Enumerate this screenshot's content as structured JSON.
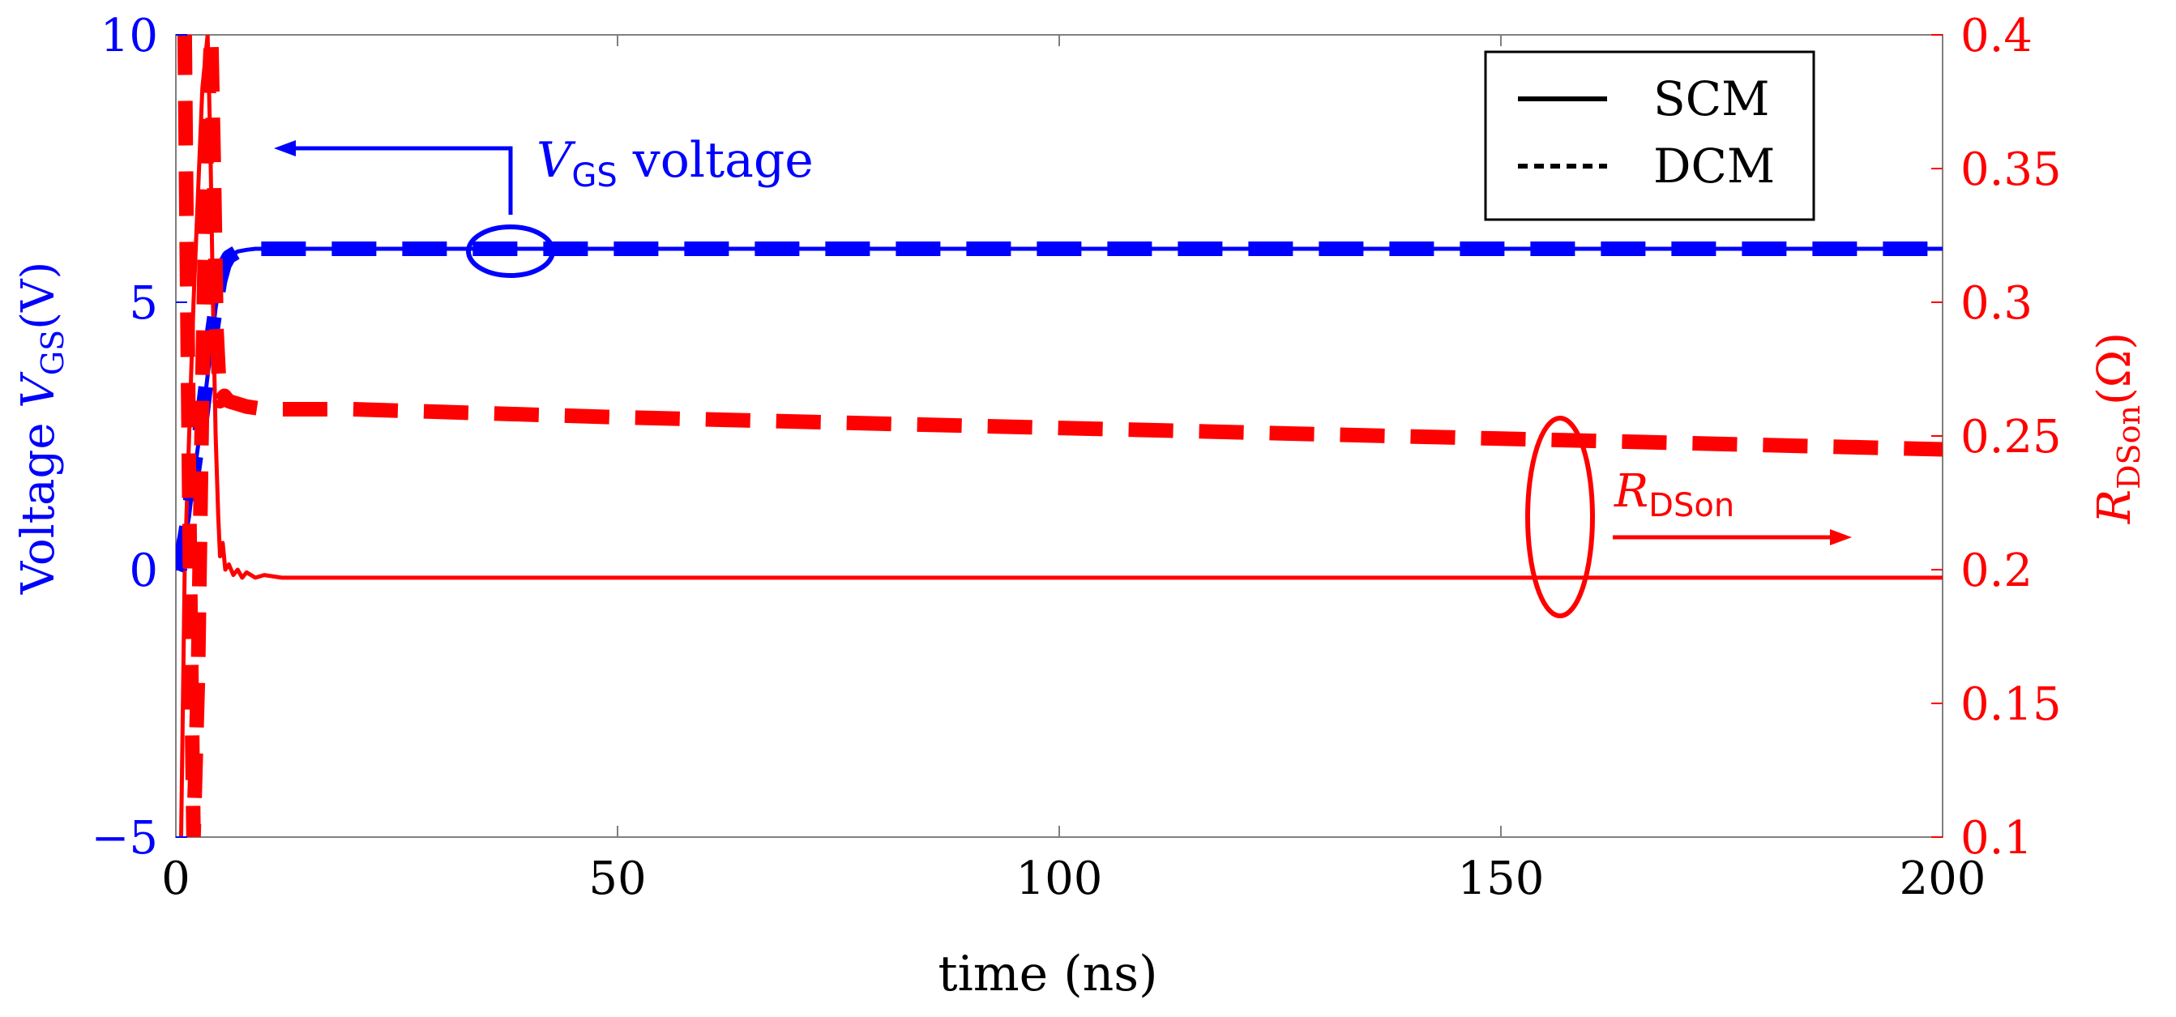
{
  "chart_data": {
    "type": "line",
    "title": "",
    "xlabel": "time (ns)",
    "ylabel_left": {
      "prefix": "Voltage ",
      "symbol": "V",
      "subscript": "GS",
      "suffix": "(V)"
    },
    "ylabel_right": {
      "symbol": "R",
      "subscript": "DSon",
      "suffix": "(Ω)"
    },
    "xlim": [
      0,
      200
    ],
    "ylim_left": [
      -5,
      10
    ],
    "ylim_right": [
      0.1,
      0.4
    ],
    "x_ticks": [
      0,
      50,
      100,
      150,
      200
    ],
    "x_tick_labels": [
      "0",
      "50",
      "100",
      "150",
      "200"
    ],
    "left_ticks": [
      -5,
      0,
      5,
      10
    ],
    "left_tick_labels": [
      "−5",
      "0",
      "5",
      "10"
    ],
    "right_ticks": [
      0.1,
      0.15,
      0.2,
      0.25,
      0.3,
      0.35,
      0.4
    ],
    "right_tick_labels": [
      "0.1",
      "0.15",
      "0.2",
      "0.25",
      "0.3",
      "0.35",
      "0.4"
    ],
    "legend": {
      "position": "top-right",
      "entries": [
        {
          "label": "SCM",
          "style": "solid"
        },
        {
          "label": "DCM",
          "style": "dashed"
        }
      ]
    },
    "annotations": {
      "vgs": {
        "symbol": "V",
        "subscript": "GS",
        "text": " voltage"
      },
      "rdson": {
        "symbol": "R",
        "subscript": "DSon"
      }
    },
    "series": [
      {
        "name": "VGS SCM",
        "axis": "left",
        "color": "#0000ff",
        "style": "solid",
        "x": [
          0,
          0.5,
          1,
          1.5,
          2,
          2.5,
          3,
          3.5,
          4,
          4.5,
          5,
          5.5,
          6,
          7,
          8,
          9,
          10,
          12,
          14,
          16,
          20,
          30,
          50,
          100,
          150,
          200
        ],
        "y": [
          0,
          0.2,
          0.5,
          1.0,
          1.7,
          2.3,
          2.8,
          3.5,
          4.2,
          4.9,
          5.4,
          5.7,
          5.85,
          5.95,
          5.98,
          6.0,
          6.0,
          6.0,
          6.0,
          6.0,
          6.0,
          6.0,
          6.0,
          6.0,
          6.0,
          6.0
        ]
      },
      {
        "name": "VGS DCM",
        "axis": "left",
        "color": "#0000ff",
        "style": "dashed",
        "x": [
          0,
          0.5,
          1,
          1.5,
          2,
          2.5,
          3,
          3.5,
          4,
          4.5,
          5,
          5.5,
          6,
          7,
          8,
          9,
          10,
          12,
          14,
          16,
          20,
          30,
          50,
          100,
          150,
          200
        ],
        "y": [
          0,
          0.2,
          0.6,
          1.1,
          1.8,
          2.4,
          2.9,
          3.6,
          4.3,
          4.9,
          5.4,
          5.7,
          5.85,
          5.95,
          5.98,
          6.0,
          6.0,
          6.0,
          6.0,
          6.0,
          6.0,
          6.0,
          6.0,
          6.0,
          6.0,
          6.0
        ]
      },
      {
        "name": "RDSon SCM",
        "axis": "right",
        "color": "#ff0000",
        "style": "solid",
        "x": [
          0.5,
          0.6,
          1,
          2,
          3,
          3.6,
          3.9,
          4.2,
          4.5,
          4.8,
          5,
          5.3,
          5.6,
          6,
          6.5,
          7,
          7.5,
          8,
          9,
          10,
          12,
          15,
          20,
          25,
          30,
          50,
          100,
          150,
          200
        ],
        "y": [
          0.1,
          0.1,
          0.2,
          0.3,
          0.38,
          0.4,
          0.36,
          0.3,
          0.25,
          0.22,
          0.205,
          0.21,
          0.2,
          0.202,
          0.198,
          0.2,
          0.197,
          0.199,
          0.197,
          0.198,
          0.197,
          0.197,
          0.197,
          0.197,
          0.197,
          0.197,
          0.197,
          0.197,
          0.197
        ]
      },
      {
        "name": "RDSon DCM",
        "axis": "right",
        "color": "#ff0000",
        "style": "dashed",
        "x": [
          0.5,
          1,
          1.2,
          1.6,
          2,
          2.5,
          3,
          3.5,
          4,
          4.3,
          4.6,
          5,
          5.5,
          6,
          7,
          8,
          10,
          15,
          20,
          30,
          50,
          100,
          150,
          200
        ],
        "y": [
          0.4,
          0.4,
          0.33,
          0.2,
          0.1,
          0.16,
          0.27,
          0.36,
          0.4,
          0.35,
          0.29,
          0.263,
          0.265,
          0.263,
          0.262,
          0.261,
          0.26,
          0.26,
          0.26,
          0.259,
          0.257,
          0.253,
          0.249,
          0.245
        ]
      }
    ],
    "colors": {
      "left_axis": "#0000ff",
      "right_axis": "#ff0000",
      "frame": "#808080"
    }
  }
}
